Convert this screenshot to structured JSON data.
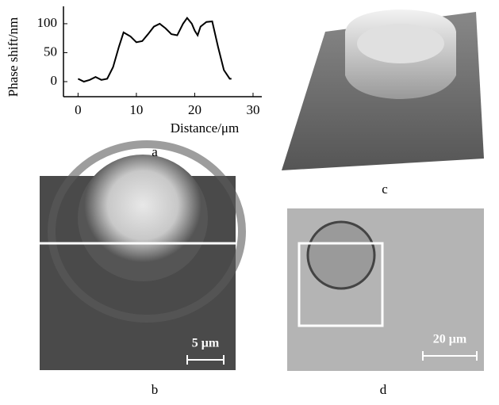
{
  "chart_data": {
    "type": "line",
    "y_label": "Phase shift/nm",
    "x_label": "Distance/μm",
    "color": "#000000",
    "x": [
      0,
      1,
      2,
      3,
      4,
      5,
      6,
      7,
      7.8,
      9,
      10,
      11,
      12,
      13,
      14,
      15,
      16,
      17,
      18,
      18.7,
      19.5,
      20,
      20.5,
      21,
      22,
      23,
      24,
      25,
      26,
      26.3
    ],
    "values": [
      5,
      0,
      3,
      8,
      3,
      5,
      25,
      60,
      85,
      78,
      68,
      70,
      82,
      95,
      100,
      92,
      82,
      80,
      100,
      110,
      100,
      88,
      80,
      95,
      103,
      104,
      60,
      20,
      5,
      5
    ],
    "xlim": [
      -2.5,
      31.5
    ],
    "ylim": [
      -26,
      130
    ],
    "xticks": [
      0,
      10,
      20,
      30
    ],
    "yticks": [
      0,
      50,
      100
    ]
  },
  "panels": {
    "a": "a",
    "b": "b",
    "c": "c",
    "d": "d"
  },
  "scale_bars": {
    "b": "5 μm",
    "d": "20 μm"
  }
}
